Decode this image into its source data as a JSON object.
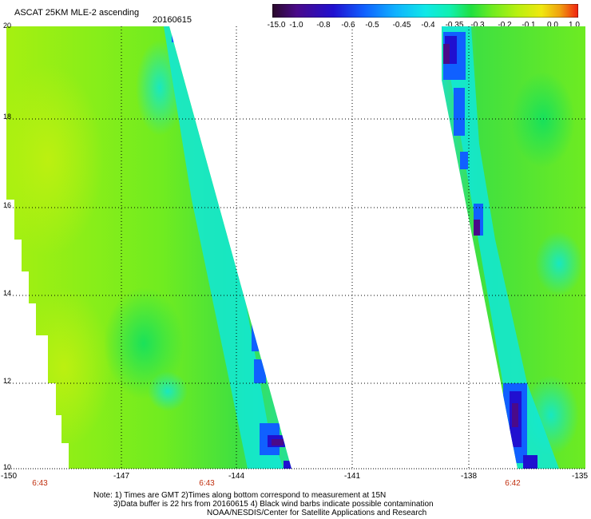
{
  "header": {
    "title": "ASCAT 25KM MLE-2 ascending",
    "date": "20160615"
  },
  "colorbar": {
    "labels": [
      "-15.0",
      "-1.0",
      "-0.8",
      "-0.6",
      "-0.5",
      "-0.45",
      "-0.4",
      "-0.35",
      "-0.3",
      "-0.2",
      "-0.1",
      "0.0",
      "1.0"
    ],
    "colors": [
      "#2a0a2a",
      "#4a0a8a",
      "#2010d0",
      "#1060ff",
      "#10b0ff",
      "#10e8e8",
      "#10f0b0",
      "#20e040",
      "#70ec20",
      "#b8f010",
      "#f0e810",
      "#f0a010",
      "#f04010"
    ]
  },
  "map": {
    "lat_labels": [
      "20",
      "18",
      "16",
      "14",
      "12",
      "10"
    ],
    "lon_labels": [
      "-150",
      "-147",
      "-144",
      "-141",
      "-138",
      "-135"
    ],
    "pass_times": [
      "6:43",
      "6:43",
      "6:42"
    ],
    "lat_range": [
      10,
      20
    ],
    "lon_range": [
      -150,
      -135
    ]
  },
  "footer": {
    "line1": "Note: 1) Times are GMT 2)Times along bottom correspond to measurement at 15N",
    "line2": "3)Data buffer is 22 hrs from 20160615 4) Black wind barbs indicate possible contamination",
    "line3": "NOAA/NESDIS/Center for Satellite Applications and Research"
  }
}
